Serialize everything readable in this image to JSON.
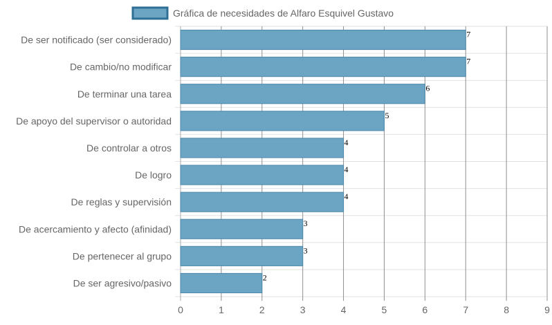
{
  "chart_data": {
    "type": "bar",
    "orientation": "horizontal",
    "categories": [
      "De ser notificado (ser considerado)",
      "De cambio/no modificar",
      "De terminar una tarea",
      "De apoyo del supervisor o autoridad",
      "De controlar a otros",
      "De logro",
      "De reglas y supervisión",
      "De acercamiento y afecto (afinidad)",
      "De pertenecer al grupo",
      "De ser agresivo/pasivo"
    ],
    "series": [
      {
        "name": "Gráfica de necesidades de Alfaro Esquivel Gustavo",
        "values": [
          7,
          7,
          6,
          5,
          4,
          4,
          4,
          3,
          3,
          2
        ]
      }
    ],
    "xlim": [
      0,
      9
    ],
    "x_ticks": [
      "0",
      "1",
      "2",
      "3",
      "4",
      "5",
      "6",
      "7",
      "8",
      "9"
    ],
    "grid": true,
    "legend_position": "top",
    "data_labels": true,
    "colors": {
      "bar_fill": "#6ca4c3",
      "bar_border": "#4a87ab",
      "legend_fill": "#6ca4c3",
      "legend_border": "#2f6f96",
      "grid": "#e2e2e2",
      "vertical_grid": "#8f8f8f"
    }
  }
}
